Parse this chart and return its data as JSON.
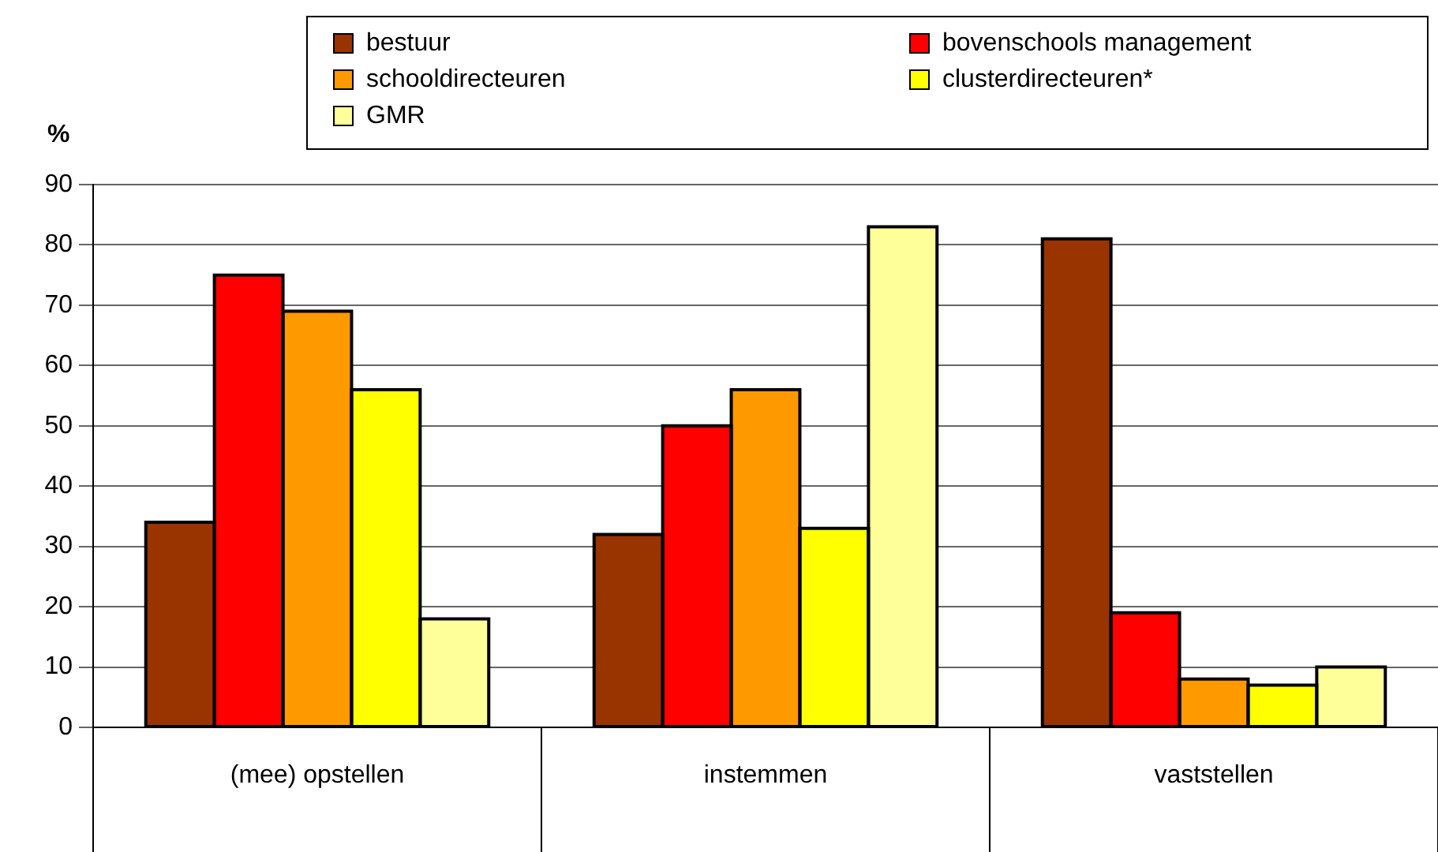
{
  "chart_data": {
    "type": "bar",
    "ylabel": "%",
    "categories": [
      "(mee) opstellen",
      "instemmen",
      "vaststellen"
    ],
    "series": [
      {
        "name": "bestuur",
        "color": "#993300",
        "values": [
          34,
          32,
          81
        ]
      },
      {
        "name": "bovenschools management",
        "color": "#ff0000",
        "values": [
          75,
          50,
          19
        ]
      },
      {
        "name": "schooldirecteuren",
        "color": "#ff9900",
        "values": [
          69,
          56,
          8
        ]
      },
      {
        "name": "clusterdirecteuren*",
        "color": "#ffff00",
        "values": [
          56,
          33,
          7
        ]
      },
      {
        "name": "GMR",
        "color": "#ffff99",
        "values": [
          18,
          83,
          10
        ]
      }
    ],
    "ylim": [
      0,
      90
    ],
    "yticks": [
      0,
      10,
      20,
      30,
      40,
      50,
      60,
      70,
      80,
      90
    ],
    "grid": "y",
    "legend": "top right"
  }
}
